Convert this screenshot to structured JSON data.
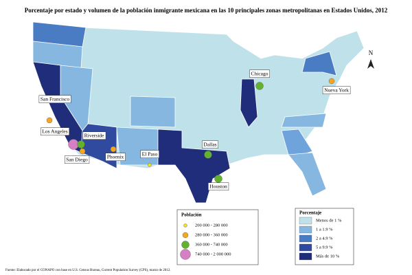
{
  "title": "Porcentaje por estado y volumen de la población inmigrante mexicana en las 10 principales zonas metropolitanas en Estados Unidos, 2012",
  "north": "N",
  "cities": [
    {
      "name": "Chicago",
      "color": "#62b22f"
    },
    {
      "name": "Nueva York",
      "color": "#f5a623"
    },
    {
      "name": "San Francisco",
      "color": "#f5a623"
    },
    {
      "name": "Los Angeles",
      "color": "#d77fc4"
    },
    {
      "name": "Riverside",
      "color": "#62b22f"
    },
    {
      "name": "San Diego",
      "color": "#f5a623"
    },
    {
      "name": "Phoenix",
      "color": "#f5a623"
    },
    {
      "name": "El Paso",
      "color": "#f2e21a"
    },
    {
      "name": "Dallas",
      "color": "#62b22f"
    },
    {
      "name": "Houston",
      "color": "#62b22f"
    }
  ],
  "population_legend": {
    "title": "Población",
    "items": [
      {
        "label": "200 000 - 280 000",
        "color": "#f2e21a"
      },
      {
        "label": "280 000 - 360 000",
        "color": "#f5a623"
      },
      {
        "label": "360 000 - 740 000",
        "color": "#62b22f"
      },
      {
        "label": "740 000 - 2 000 000",
        "color": "#d77fc4"
      }
    ]
  },
  "percent_legend": {
    "title": "Porcentaje",
    "items": [
      {
        "label": "Menos de 1 %",
        "color": "#bfe1ea"
      },
      {
        "label": "1 a 1.9 %",
        "color": "#86b7e0"
      },
      {
        "label": "2 a 4.9 %",
        "color": "#4a7cc4"
      },
      {
        "label": "5 a 9.9 %",
        "color": "#2f4a9e"
      },
      {
        "label": "Más de 10 %",
        "color": "#1f2d7a"
      }
    ]
  },
  "source": "Fuente: Elaborado por el CONAPO con base en U.S. Census Bureau, Current Population Survey (CPS), marzo de 2012."
}
